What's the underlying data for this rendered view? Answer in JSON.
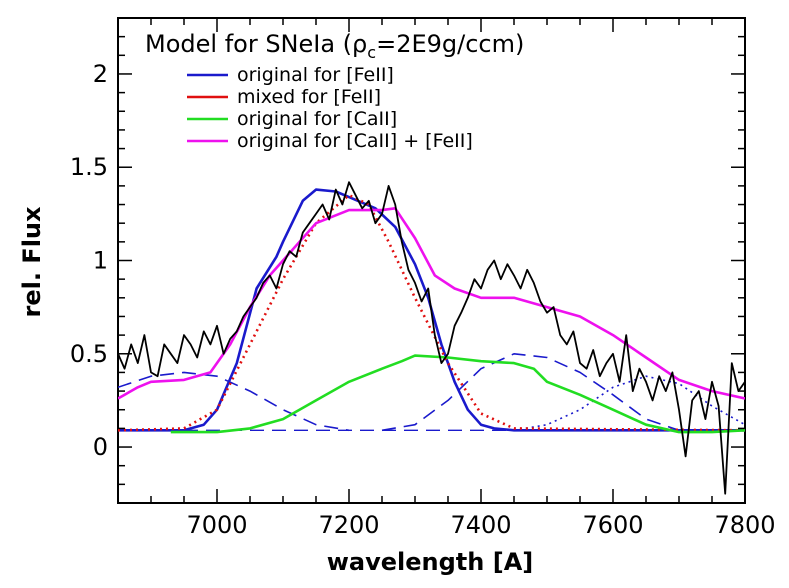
{
  "chart_data": {
    "type": "line",
    "title_prefix": "Model for SNeIa (ρ",
    "title_sub": "c",
    "title_suffix": "=2E9g/ccm)",
    "xlabel": "wavelength [A]",
    "ylabel": "rel. Flux",
    "xlim": [
      6850,
      7800
    ],
    "ylim": [
      -0.3,
      2.3
    ],
    "x_ticks": [
      7000,
      7200,
      7400,
      7600,
      7800
    ],
    "x_tick_labels": [
      "7000",
      "7200",
      "7400",
      "7600",
      "7800"
    ],
    "y_ticks": [
      0,
      0.5,
      1,
      1.5,
      2
    ],
    "y_tick_labels": [
      "0",
      "0.5",
      "1",
      "1.5",
      "2"
    ],
    "legend": [
      {
        "label": "original for [FeII]",
        "color": "#1a1acc"
      },
      {
        "label": "mixed for [FeII]",
        "color": "#e01010"
      },
      {
        "label": "original for [CaII]",
        "color": "#22dd22"
      },
      {
        "label": "original for [CaII] + [FeII]",
        "color": "#ee11ee"
      }
    ],
    "series": [
      {
        "name": "original for [FeII]",
        "color": "#1a1acc",
        "style": "solid",
        "x": [
          6850,
          6950,
          6980,
          7000,
          7030,
          7060,
          7090,
          7100,
          7130,
          7150,
          7180,
          7200,
          7240,
          7270,
          7300,
          7320,
          7340,
          7360,
          7380,
          7400,
          7420,
          7450,
          7500,
          7800
        ],
        "y": [
          0.09,
          0.09,
          0.12,
          0.2,
          0.45,
          0.85,
          1.02,
          1.1,
          1.32,
          1.38,
          1.37,
          1.34,
          1.28,
          1.18,
          0.98,
          0.8,
          0.55,
          0.35,
          0.2,
          0.12,
          0.1,
          0.09,
          0.09,
          0.09
        ]
      },
      {
        "name": "mixed for [FeII]",
        "color": "#e01010",
        "style": "dotted",
        "x": [
          6850,
          6950,
          7000,
          7050,
          7100,
          7150,
          7200,
          7230,
          7260,
          7300,
          7350,
          7400,
          7450,
          7800
        ],
        "y": [
          0.09,
          0.1,
          0.2,
          0.55,
          0.9,
          1.2,
          1.35,
          1.3,
          1.1,
          0.8,
          0.45,
          0.18,
          0.1,
          0.09
        ]
      },
      {
        "name": "original for [CaII]",
        "color": "#22dd22",
        "style": "solid",
        "x": [
          6930,
          7000,
          7050,
          7100,
          7150,
          7200,
          7250,
          7280,
          7300,
          7350,
          7400,
          7450,
          7480,
          7500,
          7550,
          7600,
          7650,
          7700,
          7750,
          7800
        ],
        "y": [
          0.08,
          0.08,
          0.1,
          0.15,
          0.25,
          0.35,
          0.42,
          0.46,
          0.49,
          0.48,
          0.46,
          0.45,
          0.42,
          0.35,
          0.28,
          0.2,
          0.12,
          0.08,
          0.08,
          0.09
        ]
      },
      {
        "name": "original for [CaII] + [FeII]",
        "color": "#ee11ee",
        "style": "solid",
        "x": [
          6850,
          6880,
          6900,
          6950,
          6990,
          7020,
          7050,
          7080,
          7100,
          7150,
          7200,
          7250,
          7270,
          7300,
          7330,
          7360,
          7400,
          7450,
          7500,
          7550,
          7600,
          7650,
          7700,
          7750,
          7800
        ],
        "y": [
          0.26,
          0.32,
          0.35,
          0.36,
          0.4,
          0.55,
          0.75,
          0.92,
          1.0,
          1.2,
          1.27,
          1.27,
          1.28,
          1.12,
          0.92,
          0.85,
          0.8,
          0.8,
          0.75,
          0.7,
          0.6,
          0.48,
          0.36,
          0.3,
          0.26
        ]
      },
      {
        "name": "observed spectrum",
        "color": "#000000",
        "style": "solid",
        "x": [
          6850,
          6860,
          6870,
          6880,
          6890,
          6900,
          6910,
          6920,
          6930,
          6940,
          6950,
          6960,
          6970,
          6980,
          6990,
          7000,
          7010,
          7020,
          7030,
          7040,
          7050,
          7060,
          7070,
          7080,
          7090,
          7100,
          7110,
          7120,
          7130,
          7140,
          7150,
          7160,
          7170,
          7180,
          7190,
          7200,
          7210,
          7220,
          7230,
          7240,
          7250,
          7260,
          7270,
          7280,
          7290,
          7300,
          7310,
          7320,
          7330,
          7340,
          7350,
          7360,
          7370,
          7380,
          7390,
          7400,
          7410,
          7420,
          7430,
          7440,
          7450,
          7460,
          7470,
          7480,
          7490,
          7500,
          7510,
          7520,
          7530,
          7540,
          7550,
          7560,
          7570,
          7580,
          7590,
          7600,
          7610,
          7620,
          7630,
          7640,
          7650,
          7660,
          7670,
          7680,
          7690,
          7700,
          7710,
          7720,
          7730,
          7740,
          7750,
          7760,
          7770,
          7780,
          7790,
          7800
        ],
        "y": [
          0.5,
          0.42,
          0.55,
          0.45,
          0.6,
          0.4,
          0.38,
          0.55,
          0.5,
          0.45,
          0.6,
          0.55,
          0.48,
          0.62,
          0.55,
          0.65,
          0.5,
          0.58,
          0.62,
          0.7,
          0.75,
          0.8,
          0.88,
          0.92,
          0.85,
          0.98,
          1.05,
          1.02,
          1.15,
          1.2,
          1.25,
          1.3,
          1.22,
          1.38,
          1.3,
          1.42,
          1.35,
          1.28,
          1.32,
          1.2,
          1.25,
          1.4,
          1.3,
          1.1,
          0.95,
          0.88,
          0.78,
          0.85,
          0.6,
          0.45,
          0.5,
          0.65,
          0.72,
          0.8,
          0.9,
          0.85,
          0.95,
          1.0,
          0.9,
          0.98,
          0.92,
          0.85,
          0.95,
          0.88,
          0.78,
          0.72,
          0.75,
          0.6,
          0.55,
          0.62,
          0.45,
          0.42,
          0.52,
          0.38,
          0.45,
          0.5,
          0.35,
          0.6,
          0.3,
          0.42,
          0.35,
          0.25,
          0.38,
          0.3,
          0.4,
          0.2,
          -0.05,
          0.25,
          0.3,
          0.15,
          0.35,
          0.22,
          -0.25,
          0.45,
          0.3,
          0.35
        ]
      }
    ],
    "components": [
      {
        "name": "FeII component (blue dashed)",
        "color": "#1a1acc",
        "style": "dashed",
        "x": [
          6850,
          6900,
          6950,
          7000,
          7050,
          7100,
          7150,
          7200
        ],
        "y": [
          0.32,
          0.38,
          0.4,
          0.38,
          0.3,
          0.2,
          0.12,
          0.09
        ]
      },
      {
        "name": "FeII component (blue dashed)",
        "color": "#1a1acc",
        "style": "dashed",
        "x": [
          7250,
          7300,
          7350,
          7400,
          7450,
          7500,
          7550,
          7600,
          7650,
          7700
        ],
        "y": [
          0.09,
          0.12,
          0.25,
          0.42,
          0.5,
          0.48,
          0.4,
          0.28,
          0.15,
          0.09
        ]
      },
      {
        "name": "FeII component (blue dotted)",
        "color": "#1a1acc",
        "style": "dotted",
        "x": [
          7450,
          7500,
          7550,
          7600,
          7650,
          7700,
          7750,
          7800
        ],
        "y": [
          0.09,
          0.12,
          0.2,
          0.32,
          0.38,
          0.34,
          0.22,
          0.12
        ]
      }
    ]
  }
}
